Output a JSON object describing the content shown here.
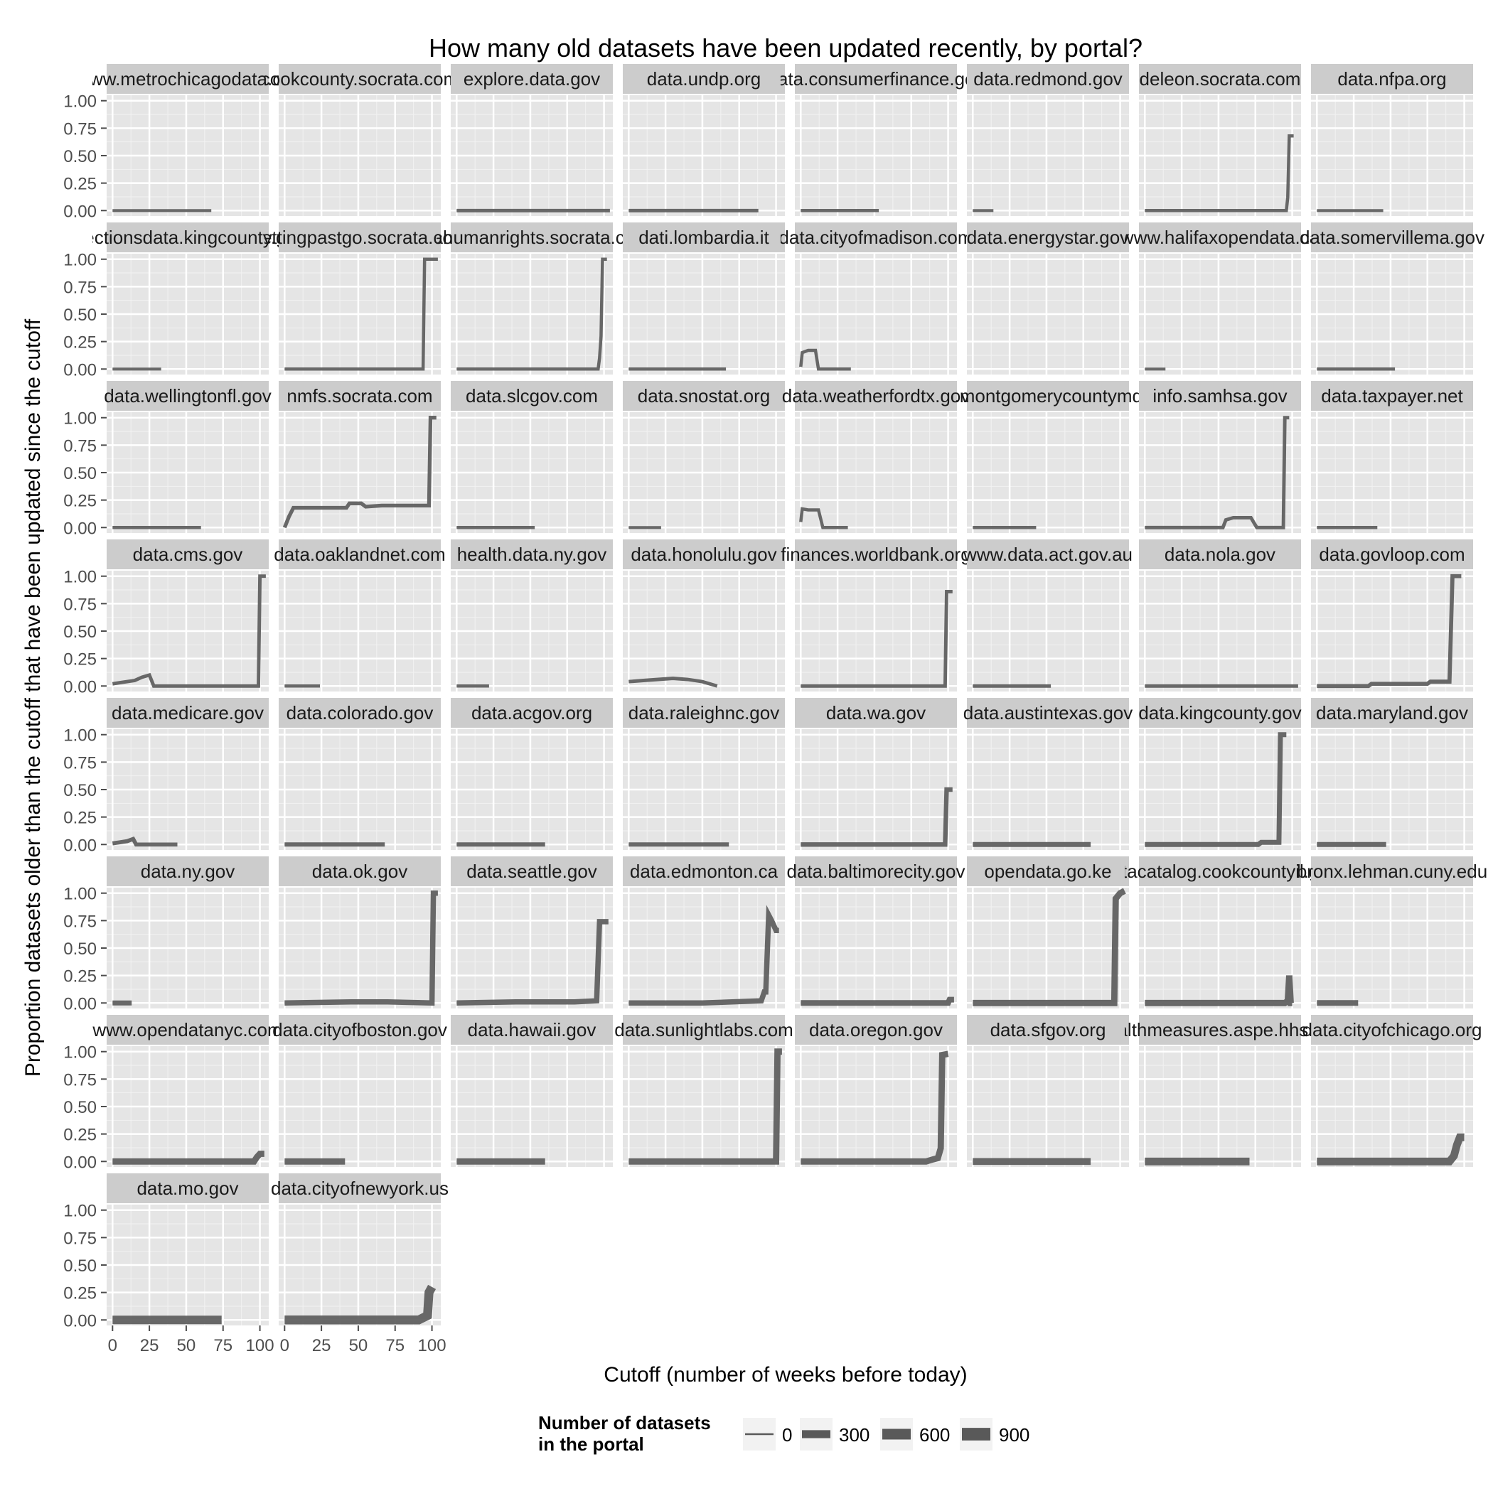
{
  "chart_data": {
    "type": "line",
    "title": "How many old datasets have been updated recently, by portal?",
    "xlabel": "Cutoff (number of weeks before today)",
    "ylabel": "Proportion datasets older than the cutoff that have been updated since the cutoff",
    "xlim": [
      -4,
      106
    ],
    "ylim": [
      -0.05,
      1.05
    ],
    "x_ticks": [
      0,
      25,
      50,
      75,
      100
    ],
    "x_tick_labels": [
      "0",
      "25",
      "50",
      "75",
      "100"
    ],
    "y_ticks": [
      0,
      0.25,
      0.5,
      0.75,
      1.0
    ],
    "y_tick_labels": [
      "0.00",
      "0.25",
      "0.50",
      "0.75",
      "1.00"
    ],
    "grid": true,
    "facet_columns": 8,
    "line_color": "#595959",
    "panel_background": "#e5e5e5",
    "strip_background": "#cccccc",
    "legend": {
      "title": "Number of datasets\nin the portal",
      "placement": "bottom",
      "entries": [
        {
          "label": "0",
          "value": 0
        },
        {
          "label": "300",
          "value": 300
        },
        {
          "label": "600",
          "value": 600
        },
        {
          "label": "900",
          "value": 900
        }
      ]
    },
    "panels": [
      {
        "name": "www.metrochicagodata.org",
        "size": 25,
        "points": [
          [
            0,
            0
          ],
          [
            67,
            0
          ]
        ]
      },
      {
        "name": "cookcounty.socrata.com",
        "size": 0,
        "points": []
      },
      {
        "name": "explore.data.gov",
        "size": 60,
        "points": [
          [
            0,
            0
          ],
          [
            104,
            0
          ]
        ]
      },
      {
        "name": "data.undp.org",
        "size": 60,
        "points": [
          [
            0,
            0
          ],
          [
            88,
            0
          ]
        ]
      },
      {
        "name": "data.consumerfinance.gov",
        "size": 40,
        "points": [
          [
            0,
            0
          ],
          [
            53,
            0
          ]
        ]
      },
      {
        "name": "data.redmond.gov",
        "size": 25,
        "points": [
          [
            0,
            0
          ],
          [
            14,
            0
          ]
        ]
      },
      {
        "name": "deleon.socrata.com",
        "size": 40,
        "points": [
          [
            0,
            0
          ],
          [
            96,
            0
          ],
          [
            97,
            0.12
          ],
          [
            98,
            0.68
          ],
          [
            101,
            0.68
          ]
        ]
      },
      {
        "name": "data.nfpa.org",
        "size": 30,
        "points": [
          [
            0,
            0
          ],
          [
            45,
            0
          ]
        ]
      },
      {
        "name": "electionsdata.kingcounty.gov",
        "size": 30,
        "points": [
          [
            0,
            0
          ],
          [
            33,
            0
          ]
        ]
      },
      {
        "name": "gettingpastgo.socrata.com",
        "size": 40,
        "points": [
          [
            0,
            0
          ],
          [
            94,
            0
          ],
          [
            95,
            1
          ],
          [
            104,
            1
          ]
        ]
      },
      {
        "name": "iatahumanrights.socrata.com",
        "size": 40,
        "points": [
          [
            0,
            0
          ],
          [
            96,
            0
          ],
          [
            97,
            0.1
          ],
          [
            98,
            0.3
          ],
          [
            99,
            1
          ],
          [
            102,
            1
          ]
        ]
      },
      {
        "name": "dati.lombardia.it",
        "size": 40,
        "points": [
          [
            0,
            0
          ],
          [
            66,
            0
          ]
        ]
      },
      {
        "name": "data.cityofmadison.com",
        "size": 40,
        "points": [
          [
            0,
            0.02
          ],
          [
            1,
            0.15
          ],
          [
            5,
            0.17
          ],
          [
            10,
            0.17
          ],
          [
            12,
            0
          ],
          [
            34,
            0
          ]
        ]
      },
      {
        "name": "data.energystar.gov",
        "size": 0,
        "points": []
      },
      {
        "name": "www.halifaxopendata.ca",
        "size": 25,
        "points": [
          [
            0,
            0
          ],
          [
            14,
            0
          ]
        ]
      },
      {
        "name": "data.somervillema.gov",
        "size": 40,
        "points": [
          [
            0,
            0
          ],
          [
            53,
            0
          ]
        ]
      },
      {
        "name": "data.wellingtonfl.gov",
        "size": 40,
        "points": [
          [
            0,
            0
          ],
          [
            60,
            0
          ]
        ]
      },
      {
        "name": "nmfs.socrata.com",
        "size": 80,
        "points": [
          [
            0,
            0
          ],
          [
            3,
            0.1
          ],
          [
            6,
            0.18
          ],
          [
            42,
            0.18
          ],
          [
            44,
            0.22
          ],
          [
            52,
            0.22
          ],
          [
            55,
            0.19
          ],
          [
            66,
            0.2
          ],
          [
            98,
            0.2
          ],
          [
            99,
            1
          ],
          [
            103,
            1
          ]
        ]
      },
      {
        "name": "data.slcgov.com",
        "size": 40,
        "points": [
          [
            0,
            0
          ],
          [
            53,
            0
          ]
        ]
      },
      {
        "name": "data.snostat.org",
        "size": 30,
        "points": [
          [
            0,
            0
          ],
          [
            22,
            0
          ]
        ]
      },
      {
        "name": "data.weatherfordtx.gov",
        "size": 40,
        "points": [
          [
            0,
            0.05
          ],
          [
            1,
            0.17
          ],
          [
            5,
            0.16
          ],
          [
            12,
            0.16
          ],
          [
            15,
            0
          ],
          [
            32,
            0
          ]
        ]
      },
      {
        "name": "data.montgomerycountymd.gov",
        "size": 40,
        "points": [
          [
            0,
            0
          ],
          [
            43,
            0
          ]
        ]
      },
      {
        "name": "info.samhsa.gov",
        "size": 60,
        "points": [
          [
            0,
            0
          ],
          [
            53,
            0
          ],
          [
            55,
            0.07
          ],
          [
            60,
            0.09
          ],
          [
            72,
            0.09
          ],
          [
            76,
            0
          ],
          [
            94,
            0
          ],
          [
            95,
            1
          ],
          [
            98,
            1
          ]
        ]
      },
      {
        "name": "data.taxpayer.net",
        "size": 40,
        "points": [
          [
            0,
            0
          ],
          [
            41,
            0
          ]
        ]
      },
      {
        "name": "data.cms.gov",
        "size": 60,
        "points": [
          [
            0,
            0.02
          ],
          [
            5,
            0.03
          ],
          [
            15,
            0.05
          ],
          [
            20,
            0.08
          ],
          [
            25,
            0.1
          ],
          [
            28,
            0
          ],
          [
            99,
            0
          ],
          [
            100,
            1
          ],
          [
            104,
            1
          ]
        ]
      },
      {
        "name": "data.oaklandnet.com",
        "size": 40,
        "points": [
          [
            0,
            0
          ],
          [
            24,
            0
          ]
        ]
      },
      {
        "name": "health.data.ny.gov",
        "size": 40,
        "points": [
          [
            0,
            0
          ],
          [
            22,
            0
          ]
        ]
      },
      {
        "name": "data.honolulu.gov",
        "size": 60,
        "points": [
          [
            0,
            0.04
          ],
          [
            10,
            0.05
          ],
          [
            20,
            0.06
          ],
          [
            30,
            0.07
          ],
          [
            40,
            0.06
          ],
          [
            50,
            0.04
          ],
          [
            55,
            0.02
          ],
          [
            60,
            0
          ]
        ]
      },
      {
        "name": "finances.worldbank.org",
        "size": 60,
        "points": [
          [
            0,
            0
          ],
          [
            98,
            0
          ],
          [
            99,
            0.86
          ],
          [
            103,
            0.86
          ]
        ]
      },
      {
        "name": "www.data.act.gov.au",
        "size": 60,
        "points": [
          [
            0,
            0
          ],
          [
            53,
            0
          ]
        ]
      },
      {
        "name": "data.nola.gov",
        "size": 60,
        "points": [
          [
            0,
            0
          ],
          [
            104,
            0
          ]
        ]
      },
      {
        "name": "data.govloop.com",
        "size": 100,
        "points": [
          [
            0,
            0
          ],
          [
            35,
            0
          ],
          [
            37,
            0.02
          ],
          [
            75,
            0.02
          ],
          [
            77,
            0.04
          ],
          [
            90,
            0.04
          ],
          [
            92,
            1
          ],
          [
            98,
            1
          ]
        ]
      },
      {
        "name": "data.medicare.gov",
        "size": 100,
        "points": [
          [
            0,
            0.01
          ],
          [
            5,
            0.02
          ],
          [
            10,
            0.03
          ],
          [
            14,
            0.05
          ],
          [
            16,
            0
          ],
          [
            44,
            0
          ]
        ]
      },
      {
        "name": "data.colorado.gov",
        "size": 120,
        "points": [
          [
            0,
            0
          ],
          [
            68,
            0
          ]
        ]
      },
      {
        "name": "data.acgov.org",
        "size": 120,
        "points": [
          [
            0,
            0
          ],
          [
            60,
            0
          ]
        ]
      },
      {
        "name": "data.raleighnc.gov",
        "size": 120,
        "points": [
          [
            0,
            0
          ],
          [
            68,
            0
          ]
        ]
      },
      {
        "name": "data.wa.gov",
        "size": 150,
        "points": [
          [
            0,
            0
          ],
          [
            98,
            0
          ],
          [
            99,
            0.5
          ],
          [
            103,
            0.5
          ]
        ]
      },
      {
        "name": "data.austintexas.gov",
        "size": 200,
        "points": [
          [
            0,
            0
          ],
          [
            80,
            0
          ]
        ]
      },
      {
        "name": "data.kingcounty.gov",
        "size": 200,
        "points": [
          [
            0,
            0
          ],
          [
            77,
            0
          ],
          [
            79,
            0.02
          ],
          [
            91,
            0.02
          ],
          [
            92,
            1
          ],
          [
            96,
            1
          ]
        ]
      },
      {
        "name": "data.maryland.gov",
        "size": 200,
        "points": [
          [
            0,
            0
          ],
          [
            47,
            0
          ]
        ]
      },
      {
        "name": "data.ny.gov",
        "size": 200,
        "points": [
          [
            0,
            0
          ],
          [
            13,
            0
          ]
        ]
      },
      {
        "name": "data.ok.gov",
        "size": 250,
        "points": [
          [
            0,
            0
          ],
          [
            45,
            0.01
          ],
          [
            70,
            0.01
          ],
          [
            100,
            0
          ],
          [
            101,
            1
          ],
          [
            104,
            1
          ]
        ]
      },
      {
        "name": "data.seattle.gov",
        "size": 250,
        "points": [
          [
            0,
            0
          ],
          [
            40,
            0.01
          ],
          [
            80,
            0.01
          ],
          [
            95,
            0.02
          ],
          [
            97,
            0.74
          ],
          [
            103,
            0.74
          ]
        ]
      },
      {
        "name": "data.edmonton.ca",
        "size": 250,
        "points": [
          [
            0,
            0
          ],
          [
            50,
            0
          ],
          [
            90,
            0.02
          ],
          [
            92,
            0.1
          ],
          [
            93,
            0.1
          ],
          [
            95,
            0.8
          ],
          [
            97,
            0.75
          ],
          [
            100,
            0.66
          ],
          [
            102,
            0.66
          ]
        ]
      },
      {
        "name": "data.baltimorecity.gov",
        "size": 300,
        "points": [
          [
            0,
            0
          ],
          [
            100,
            0
          ],
          [
            101,
            0.03
          ],
          [
            104,
            0.03
          ]
        ]
      },
      {
        "name": "opendata.go.ke",
        "size": 400,
        "points": [
          [
            0,
            0
          ],
          [
            96,
            0
          ],
          [
            97,
            0.95
          ],
          [
            100,
            1
          ],
          [
            103,
            1.02
          ]
        ]
      },
      {
        "name": "datacatalog.cookcountyil.gov",
        "size": 400,
        "points": [
          [
            0,
            0
          ],
          [
            95,
            0
          ],
          [
            97,
            0.02
          ],
          [
            98,
            0.25
          ],
          [
            99,
            0
          ],
          [
            100,
            0
          ]
        ]
      },
      {
        "name": "bronx.lehman.cuny.edu",
        "size": 300,
        "points": [
          [
            0,
            0
          ],
          [
            28,
            0
          ]
        ]
      },
      {
        "name": "www.opendatanyc.com",
        "size": 400,
        "points": [
          [
            0,
            0
          ],
          [
            96,
            0
          ],
          [
            98,
            0.04
          ],
          [
            100,
            0.07
          ],
          [
            103,
            0.07
          ]
        ]
      },
      {
        "name": "data.cityofboston.gov",
        "size": 400,
        "points": [
          [
            0,
            0
          ],
          [
            41,
            0
          ]
        ]
      },
      {
        "name": "data.hawaii.gov",
        "size": 400,
        "points": [
          [
            0,
            0
          ],
          [
            60,
            0
          ]
        ]
      },
      {
        "name": "data.sunlightlabs.com",
        "size": 400,
        "points": [
          [
            0,
            0
          ],
          [
            100,
            0
          ],
          [
            101,
            1
          ],
          [
            104,
            1
          ]
        ]
      },
      {
        "name": "data.oregon.gov",
        "size": 400,
        "points": [
          [
            0,
            0
          ],
          [
            85,
            0
          ],
          [
            90,
            0.02
          ],
          [
            93,
            0.03
          ],
          [
            95,
            0.12
          ],
          [
            96,
            0.97
          ],
          [
            100,
            0.98
          ]
        ]
      },
      {
        "name": "data.sfgov.org",
        "size": 500,
        "points": [
          [
            0,
            0
          ],
          [
            80,
            0
          ]
        ]
      },
      {
        "name": "healthmeasures.aspe.hhs.gov",
        "size": 700,
        "points": [
          [
            0,
            0
          ],
          [
            71,
            0
          ]
        ]
      },
      {
        "name": "data.cityofchicago.org",
        "size": 700,
        "points": [
          [
            0,
            0
          ],
          [
            90,
            0
          ],
          [
            93,
            0.05
          ],
          [
            95,
            0.15
          ],
          [
            97,
            0.22
          ],
          [
            100,
            0.22
          ]
        ]
      },
      {
        "name": "data.mo.gov",
        "size": 900,
        "points": [
          [
            0,
            0
          ],
          [
            74,
            0
          ]
        ]
      },
      {
        "name": "data.cityofnewyork.us",
        "size": 1000,
        "points": [
          [
            0,
            0
          ],
          [
            91,
            0
          ],
          [
            97,
            0.04
          ],
          [
            98,
            0.25
          ],
          [
            100,
            0.3
          ]
        ]
      }
    ]
  }
}
